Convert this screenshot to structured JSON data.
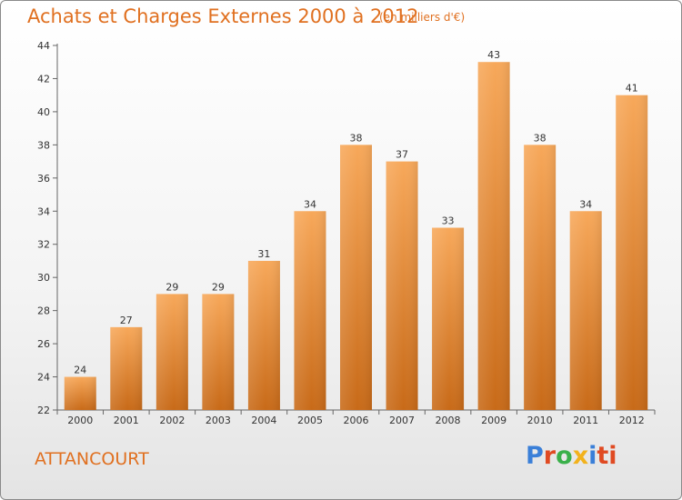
{
  "header": {
    "title": "Achats et Charges Externes 2000 à 2012",
    "subtitle": "(en milliers d'€)"
  },
  "footer": {
    "commune": "ATTANCOURT",
    "brand": "Proxiti"
  },
  "colors": {
    "accent": "#e07020",
    "bar_top": "#f7a85a",
    "bar_bottom": "#c86a18"
  },
  "chart_data": {
    "type": "bar",
    "title": "Achats et Charges Externes 2000 à 2012",
    "subtitle": "(en milliers d'€)",
    "categories": [
      "2000",
      "2001",
      "2002",
      "2003",
      "2004",
      "2005",
      "2006",
      "2007",
      "2008",
      "2009",
      "2010",
      "2011",
      "2012"
    ],
    "values": [
      24,
      27,
      29,
      29,
      31,
      34,
      38,
      37,
      33,
      43,
      38,
      34,
      41
    ],
    "ylim": [
      22,
      44
    ],
    "yticks": [
      22,
      24,
      26,
      28,
      30,
      32,
      34,
      36,
      38,
      40,
      42,
      44
    ],
    "grid": false,
    "legend": "none"
  }
}
